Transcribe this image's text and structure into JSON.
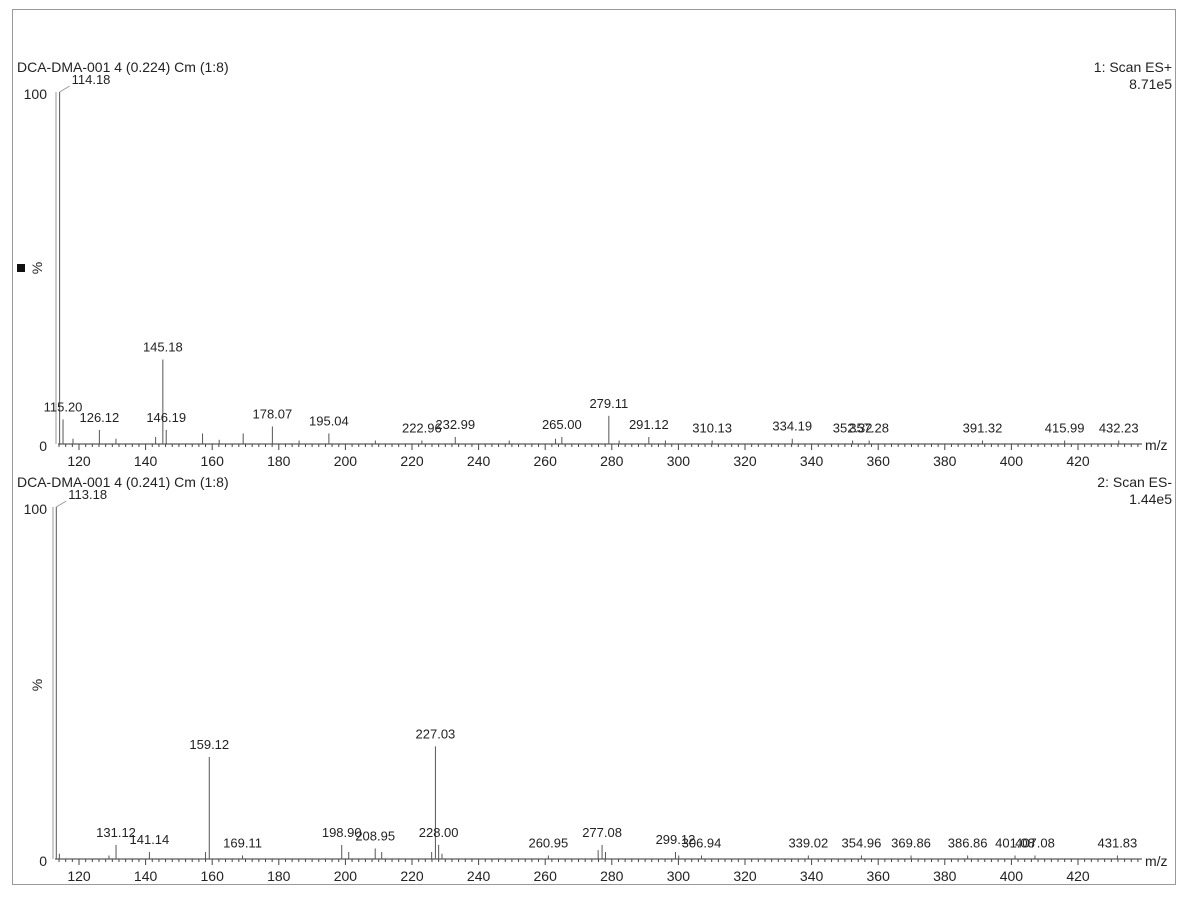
{
  "chart_data": [
    {
      "type": "bar",
      "sample_label": "DCA-DMA-001 4 (0.224) Cm (1:8)",
      "scan_label": "1: Scan ES+",
      "intensity_label": "8.71e5",
      "ylabel": "%",
      "xlabel": "m/z",
      "ylim": [
        0,
        100
      ],
      "xlim": [
        114,
        440
      ],
      "y_ticks": [
        "100",
        "0"
      ],
      "x_ticks": [
        120,
        140,
        160,
        180,
        200,
        220,
        240,
        260,
        280,
        300,
        320,
        340,
        360,
        380,
        400,
        420
      ],
      "peaks": [
        {
          "mz": 114.18,
          "rel": 100,
          "label": "114.18"
        },
        {
          "mz": 115.2,
          "rel": 7,
          "label": "115.20"
        },
        {
          "mz": 126.12,
          "rel": 4,
          "label": "126.12"
        },
        {
          "mz": 145.18,
          "rel": 24,
          "label": "145.18"
        },
        {
          "mz": 146.19,
          "rel": 4,
          "label": "146.19"
        },
        {
          "mz": 178.07,
          "rel": 5,
          "label": "178.07"
        },
        {
          "mz": 195.04,
          "rel": 3,
          "label": "195.04"
        },
        {
          "mz": 222.96,
          "rel": 1,
          "label": "222.96"
        },
        {
          "mz": 232.99,
          "rel": 2,
          "label": "232.99"
        },
        {
          "mz": 265.0,
          "rel": 2,
          "label": "265.00"
        },
        {
          "mz": 279.11,
          "rel": 8,
          "label": "279.11"
        },
        {
          "mz": 291.12,
          "rel": 2,
          "label": "291.12"
        },
        {
          "mz": 310.13,
          "rel": 1,
          "label": "310.13"
        },
        {
          "mz": 334.19,
          "rel": 1.5,
          "label": "334.19"
        },
        {
          "mz": 352.32,
          "rel": 1,
          "label": "352.32"
        },
        {
          "mz": 357.28,
          "rel": 1,
          "label": "357.28"
        },
        {
          "mz": 391.32,
          "rel": 1,
          "label": "391.32"
        },
        {
          "mz": 415.99,
          "rel": 1,
          "label": "415.99"
        },
        {
          "mz": 432.23,
          "rel": 1,
          "label": "432.23"
        },
        {
          "mz": 118.2,
          "rel": 1.5
        },
        {
          "mz": 131.1,
          "rel": 1.5
        },
        {
          "mz": 143.0,
          "rel": 2
        },
        {
          "mz": 157.1,
          "rel": 3
        },
        {
          "mz": 162.1,
          "rel": 1.2
        },
        {
          "mz": 169.3,
          "rel": 3
        },
        {
          "mz": 186.1,
          "rel": 1
        },
        {
          "mz": 209.0,
          "rel": 1
        },
        {
          "mz": 249.2,
          "rel": 1
        },
        {
          "mz": 263.1,
          "rel": 1.5
        },
        {
          "mz": 282.2,
          "rel": 1
        },
        {
          "mz": 296.1,
          "rel": 1
        }
      ]
    },
    {
      "type": "bar",
      "sample_label": "DCA-DMA-001 4 (0.241) Cm (1:8)",
      "scan_label": "2: Scan ES-",
      "intensity_label": "1.44e5",
      "ylabel": "%",
      "xlabel": "m/z",
      "ylim": [
        0,
        100
      ],
      "xlim": [
        114,
        440
      ],
      "y_ticks": [
        "100",
        "0"
      ],
      "x_ticks": [
        120,
        140,
        160,
        180,
        200,
        220,
        240,
        260,
        280,
        300,
        320,
        340,
        360,
        380,
        400,
        420
      ],
      "peaks": [
        {
          "mz": 113.18,
          "rel": 100,
          "label": "113.18"
        },
        {
          "mz": 131.12,
          "rel": 4,
          "label": "131.12"
        },
        {
          "mz": 141.14,
          "rel": 2,
          "label": "141.14"
        },
        {
          "mz": 159.12,
          "rel": 29,
          "label": "159.12"
        },
        {
          "mz": 169.11,
          "rel": 1,
          "label": "169.11"
        },
        {
          "mz": 198.9,
          "rel": 4,
          "label": "198.90"
        },
        {
          "mz": 208.95,
          "rel": 3,
          "label": "208.95"
        },
        {
          "mz": 227.03,
          "rel": 32,
          "label": "227.03"
        },
        {
          "mz": 228.0,
          "rel": 4,
          "label": "228.00"
        },
        {
          "mz": 260.95,
          "rel": 1,
          "label": "260.95"
        },
        {
          "mz": 277.08,
          "rel": 4,
          "label": "277.08"
        },
        {
          "mz": 299.12,
          "rel": 2,
          "label": "299.12"
        },
        {
          "mz": 306.94,
          "rel": 1,
          "label": "306.94"
        },
        {
          "mz": 339.02,
          "rel": 1,
          "label": "339.02"
        },
        {
          "mz": 354.96,
          "rel": 1,
          "label": "354.96"
        },
        {
          "mz": 369.86,
          "rel": 1,
          "label": "369.86"
        },
        {
          "mz": 386.86,
          "rel": 1,
          "label": "386.86"
        },
        {
          "mz": 401.08,
          "rel": 1,
          "label": "401.08"
        },
        {
          "mz": 407.08,
          "rel": 1,
          "label": "407.08"
        },
        {
          "mz": 431.83,
          "rel": 1,
          "label": "431.83"
        },
        {
          "mz": 114.1,
          "rel": 1.5
        },
        {
          "mz": 129.0,
          "rel": 1
        },
        {
          "mz": 158.0,
          "rel": 2
        },
        {
          "mz": 201.0,
          "rel": 2
        },
        {
          "mz": 210.9,
          "rel": 2
        },
        {
          "mz": 225.9,
          "rel": 2
        },
        {
          "mz": 229.0,
          "rel": 1.5
        },
        {
          "mz": 275.9,
          "rel": 2.5
        },
        {
          "mz": 278.1,
          "rel": 2
        },
        {
          "mz": 300.1,
          "rel": 1
        }
      ]
    }
  ]
}
